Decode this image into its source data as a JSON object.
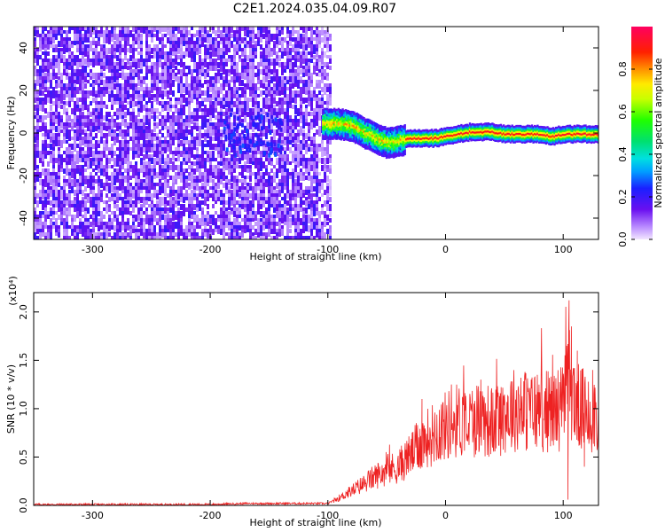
{
  "figure": {
    "title": "C2E1.2024.035.04.09.R07"
  },
  "chart_data": [
    {
      "type": "heatmap",
      "panel": "spectrogram",
      "xlabel": "Height of straight line (km)",
      "ylabel": "Frequency (Hz)",
      "xlim": [
        -350,
        130
      ],
      "ylim": [
        -50,
        50
      ],
      "xticks": [
        -300,
        -200,
        -100,
        0,
        100
      ],
      "yticks": [
        -40,
        -20,
        0,
        20,
        40
      ],
      "colorbar": {
        "label": "Normalized spectral amplitude",
        "range": [
          0.0,
          1.0
        ],
        "ticks": [
          "0.0",
          "0.2",
          "0.4",
          "0.6",
          "0.8"
        ],
        "tick_values": [
          0.0,
          0.2,
          0.4,
          0.6,
          0.8
        ],
        "colormap": "rainbow (lavender-purple-blue-cyan-green-yellow-orange-red-magenta)"
      },
      "regions": [
        {
          "description": "broadband noise",
          "x_range": [
            -350,
            -100
          ],
          "freq_range": [
            -50,
            50
          ],
          "amplitude": 0.15
        },
        {
          "description": "weak centroid signal",
          "x_range": [
            -190,
            -140
          ],
          "freq_range": [
            -10,
            10
          ],
          "amplitude": 0.2
        },
        {
          "description": "doppler signal band",
          "x_range": [
            -105,
            130
          ],
          "freq_center": [
            [
              -100,
              5
            ],
            [
              -90,
              5
            ],
            [
              -80,
              4
            ],
            [
              -70,
              1
            ],
            [
              -60,
              -2
            ],
            [
              -50,
              -4
            ],
            [
              -40,
              -3
            ],
            [
              -30,
              -2
            ],
            [
              -20,
              -2
            ],
            [
              -10,
              -2
            ],
            [
              0,
              -1
            ],
            [
              10,
              0
            ],
            [
              20,
              1
            ],
            [
              30,
              1
            ],
            [
              40,
              1
            ],
            [
              50,
              0
            ],
            [
              60,
              0
            ],
            [
              70,
              0
            ],
            [
              80,
              0
            ],
            [
              90,
              -1
            ],
            [
              100,
              0
            ],
            [
              110,
              0
            ],
            [
              120,
              0
            ],
            [
              130,
              0
            ]
          ],
          "amplitude": 0.9
        }
      ]
    },
    {
      "type": "line",
      "panel": "snr",
      "xlabel": "Height of straight line (km)",
      "ylabel": "SNR (10 * v/v)",
      "y_multiplier": "(x10⁴)",
      "xlim": [
        -350,
        130
      ],
      "ylim": [
        0.0,
        2.2
      ],
      "xticks": [
        -300,
        -200,
        -100,
        0,
        100
      ],
      "yticks": [
        "0.0",
        "0.5",
        "1.0",
        "1.5",
        "2.0"
      ],
      "ytick_values": [
        0.0,
        0.5,
        1.0,
        1.5,
        2.0
      ],
      "series": [
        {
          "color": "#ee2222",
          "x": [
            -350,
            -300,
            -250,
            -200,
            -170,
            -150,
            -120,
            -100,
            -90,
            -80,
            -70,
            -60,
            -50,
            -40,
            -30,
            -20,
            -10,
            0,
            10,
            20,
            30,
            40,
            50,
            60,
            70,
            80,
            90,
            100,
            105,
            110,
            120,
            130
          ],
          "y": [
            0.01,
            0.01,
            0.01,
            0.01,
            0.02,
            0.02,
            0.02,
            0.02,
            0.08,
            0.15,
            0.22,
            0.3,
            0.36,
            0.4,
            0.52,
            0.65,
            0.75,
            0.82,
            0.88,
            0.86,
            0.92,
            0.85,
            0.95,
            1.0,
            0.98,
            0.97,
            0.98,
            1.02,
            1.3,
            1.05,
            0.95,
            0.98
          ],
          "peaks": [
            [
              -20,
              1.1
            ],
            [
              5,
              1.25
            ],
            [
              30,
              1.3
            ],
            [
              62,
              1.15
            ],
            [
              78,
              1.35
            ],
            [
              92,
              1.28
            ],
            [
              103,
              1.65
            ],
            [
              105,
              2.12
            ],
            [
              107,
              1.85
            ],
            [
              112,
              1.6
            ],
            [
              125,
              1.4
            ]
          ],
          "dips": [
            [
              104,
              0.06
            ],
            [
              118,
              0.4
            ]
          ]
        }
      ]
    }
  ]
}
